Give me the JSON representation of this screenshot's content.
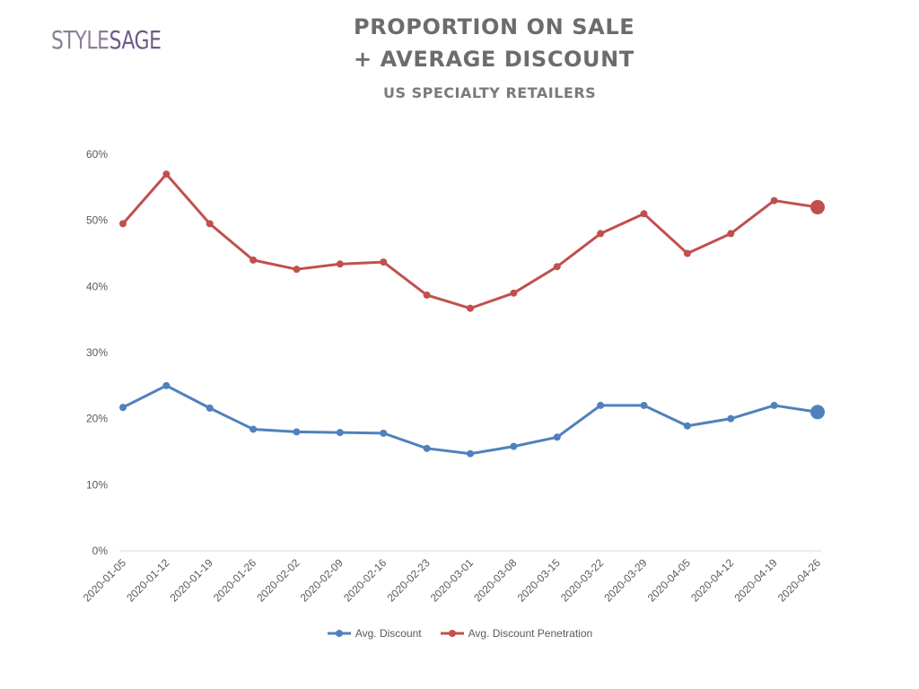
{
  "logo": {
    "part1": "STYLE",
    "part2": "SAGE"
  },
  "chart_data": {
    "type": "line",
    "title_line1": "PROPORTION ON SALE",
    "title_line2": "+ AVERAGE DISCOUNT",
    "subtitle": "US SPECIALTY RETAILERS",
    "xlabel": "",
    "ylabel": "",
    "ylim": [
      0,
      60
    ],
    "yticks": [
      "0%",
      "10%",
      "20%",
      "30%",
      "40%",
      "50%",
      "60%"
    ],
    "categories": [
      "2020-01-05",
      "2020-01-12",
      "2020-01-19",
      "2020-01-26",
      "2020-02-02",
      "2020-02-09",
      "2020-02-16",
      "2020-02-23",
      "2020-03-01",
      "2020-03-08",
      "2020-03-15",
      "2020-03-22",
      "2020-03-29",
      "2020-04-05",
      "2020-04-12",
      "2020-04-19",
      "2020-04-26"
    ],
    "series": [
      {
        "name": "Avg. Discount",
        "color": "#4f81bd",
        "values": [
          21.7,
          25.0,
          21.6,
          18.4,
          18.0,
          17.9,
          17.8,
          15.5,
          14.7,
          15.8,
          17.2,
          22.0,
          22.0,
          18.9,
          20.0,
          22.0,
          21.0
        ]
      },
      {
        "name": "Avg. Discount Penetration",
        "color": "#c0504d",
        "values": [
          49.5,
          57.0,
          49.5,
          44.0,
          42.6,
          43.4,
          43.7,
          38.7,
          36.7,
          39.0,
          43.0,
          48.0,
          51.0,
          45.0,
          48.0,
          53.0,
          52.0
        ]
      }
    ],
    "grid": false,
    "legend_position": "bottom",
    "last_point_emphasized": true
  }
}
